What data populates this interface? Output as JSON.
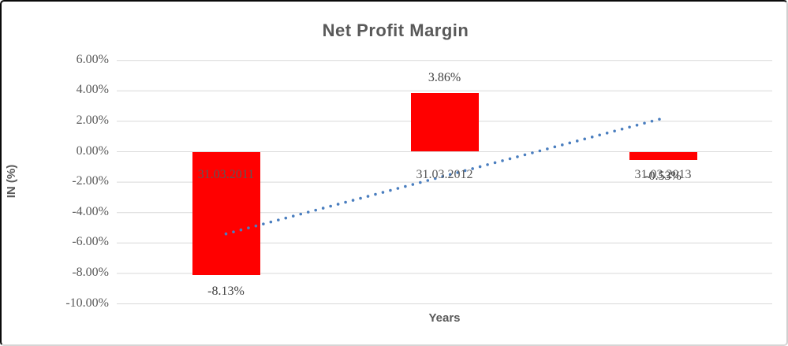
{
  "chart": {
    "title": "Net Profit Margin",
    "y_axis_title": "IN (%)",
    "x_axis_title": "Years"
  },
  "colors": {
    "bar": "#ff0000",
    "gridline": "#d9d9d9",
    "axis_text": "#595959",
    "data_label_text": "#3f3f3f",
    "trendline": "#4a7ebf",
    "title_text": "#595959"
  },
  "chart_data": {
    "type": "bar",
    "title": "Net Profit Margin",
    "xlabel": "Years",
    "ylabel": "IN (%)",
    "categories": [
      "31.03.2011",
      "31.03.2012",
      "31.03.2013"
    ],
    "values": [
      -8.13,
      3.86,
      -0.53
    ],
    "data_labels": [
      "-8.13%",
      "3.86%",
      "-0.53%"
    ],
    "ylim": [
      -10,
      6
    ],
    "y_tick_step": 2,
    "y_tick_labels": [
      "6.00%",
      "4.00%",
      "2.00%",
      "0.00%",
      "-2.00%",
      "-4.00%",
      "-6.00%",
      "-8.00%",
      "-10.00%"
    ],
    "grid": true,
    "legend": false,
    "trendline": {
      "type": "linear",
      "style": "dotted",
      "start_value": -5.4,
      "end_value": 2.2
    }
  }
}
